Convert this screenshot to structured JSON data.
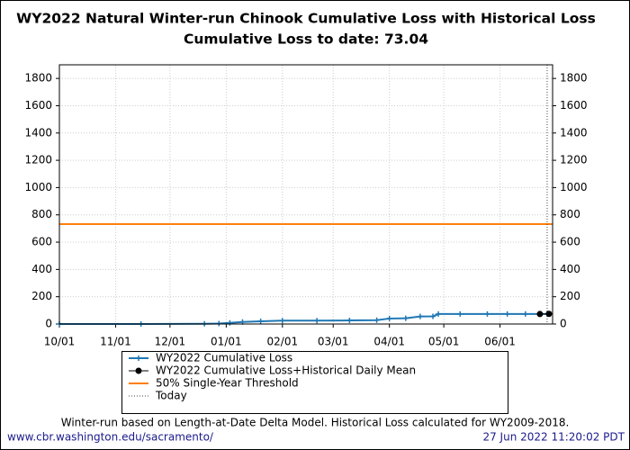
{
  "chart_data": {
    "type": "line",
    "title": "WY2022 Natural Winter-run Chinook Cumulative Loss with Historical Loss",
    "subtitle": "Cumulative Loss to date: 73.04",
    "x": [
      "10/01",
      "11/15",
      "12/20",
      "12/28",
      "01/03",
      "01/10",
      "01/20",
      "02/01",
      "02/20",
      "03/10",
      "03/25",
      "04/01",
      "04/10",
      "04/18",
      "04/25",
      "04/28",
      "05/10",
      "05/25",
      "06/05",
      "06/15",
      "06/27"
    ],
    "series": [
      {
        "name": "WY2022 Cumulative Loss",
        "color": "#1f77b4",
        "values": [
          0,
          0,
          2,
          3,
          8,
          15,
          20,
          25,
          25,
          26,
          28,
          40,
          42,
          55,
          56,
          73,
          73,
          73,
          73.04,
          73.04,
          73.04
        ]
      },
      {
        "name": "WY2022 Cumulative Loss+Historical Daily Mean",
        "color": "#000000",
        "x": [
          "06/23",
          "06/28"
        ],
        "values": [
          73.04,
          74
        ]
      }
    ],
    "threshold": {
      "name": "50% Single-Year Threshold",
      "value": 732,
      "color": "#ff7f0e"
    },
    "today": {
      "name": "Today",
      "x": "06/27"
    },
    "xlim": [
      "10/01",
      "06/30"
    ],
    "xticks": [
      "10/01",
      "11/01",
      "12/01",
      "01/01",
      "02/01",
      "03/01",
      "04/01",
      "05/01",
      "06/01"
    ],
    "ylim": [
      0,
      1900
    ],
    "yticks": [
      0,
      200,
      400,
      600,
      800,
      1000,
      1200,
      1400,
      1600,
      1800
    ],
    "grid": true,
    "footnote": "Winter-run based on Length-at-Date Delta Model. Historical Loss calculated for WY2009-2018.",
    "source": "www.cbr.washington.edu/sacramento/",
    "timestamp": "27 Jun 2022 11:20:02 PDT"
  }
}
